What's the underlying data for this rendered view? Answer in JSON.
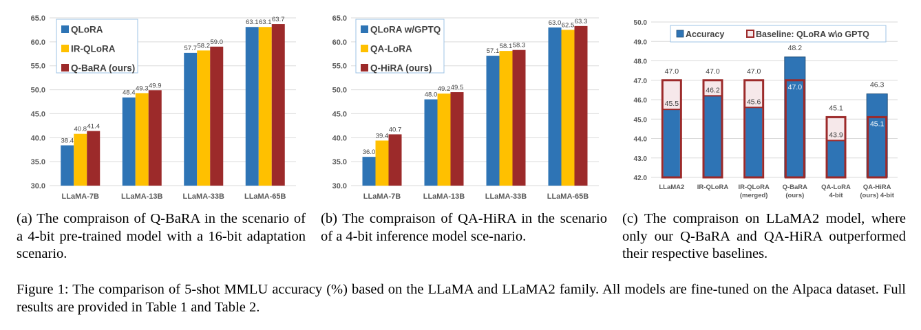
{
  "colors": {
    "blue": "#2e74b5",
    "yellow": "#ffc000",
    "red": "#9c2a2a",
    "baseline_edge": "#9c2a2a",
    "baseline_fill": "#f6e8ea",
    "grid": "#d9d9d9",
    "axis_text": "#595959"
  },
  "chart_data": [
    {
      "type": "bar",
      "categories": [
        "LLaMA-7B",
        "LLaMA-13B",
        "LLaMA-33B",
        "LLaMA-65B"
      ],
      "series": [
        {
          "name": "QLoRA",
          "values": [
            38.4,
            48.4,
            57.7,
            63.1
          ],
          "color": "blue"
        },
        {
          "name": "IR-QLoRA",
          "values": [
            40.8,
            49.3,
            58.2,
            63.1
          ],
          "color": "yellow"
        },
        {
          "name": "Q-BaRA (ours)",
          "values": [
            41.4,
            49.9,
            59.0,
            63.7
          ],
          "color": "red"
        }
      ],
      "yticks": [
        "30.0",
        "35.0",
        "40.0",
        "45.0",
        "50.0",
        "55.0",
        "60.0",
        "65.0"
      ],
      "ylim": [
        30,
        65
      ],
      "grid": true,
      "legend_position": "top-left"
    },
    {
      "type": "bar",
      "categories": [
        "LLaMA-7B",
        "LLaMA-13B",
        "LLaMA-33B",
        "LLaMA-65B"
      ],
      "series": [
        {
          "name": "QLoRA w/GPTQ",
          "values": [
            36.0,
            48.0,
            57.1,
            63.0
          ],
          "color": "blue"
        },
        {
          "name": "QA-LoRA",
          "values": [
            39.4,
            49.2,
            58.1,
            62.5
          ],
          "color": "yellow"
        },
        {
          "name": "Q-HiRA (ours)",
          "values": [
            40.7,
            49.5,
            58.3,
            63.3
          ],
          "color": "red"
        }
      ],
      "yticks": [
        "30.0",
        "35.0",
        "40.0",
        "45.0",
        "50.0",
        "55.0",
        "60.0",
        "65.0"
      ],
      "ylim": [
        30,
        65
      ],
      "grid": true,
      "legend_position": "top-left"
    },
    {
      "type": "bar",
      "categories": [
        [
          "LLaMA2"
        ],
        [
          "IR-QLoRA"
        ],
        [
          "IR-QLoRA",
          "(merged)"
        ],
        [
          "Q-BaRA",
          "(ours)"
        ],
        [
          "QA-LoRA",
          "4-bit"
        ],
        [
          "QA-HiRA",
          "(ours) 4-bit"
        ]
      ],
      "series": [
        {
          "name": "Accuracy",
          "values": [
            45.5,
            46.2,
            45.6,
            48.2,
            43.9,
            46.3
          ],
          "color": "blue"
        },
        {
          "name": "Baseline: QLoRA w\\o GPTQ",
          "values": [
            47.0,
            47.0,
            47.0,
            47.0,
            45.1,
            45.1
          ],
          "color": "baseline"
        }
      ],
      "yticks": [
        "42.0",
        "43.0",
        "44.0",
        "45.0",
        "46.0",
        "47.0",
        "48.0",
        "49.0",
        "50.0"
      ],
      "ylim": [
        42,
        50
      ],
      "grid": true,
      "legend_position": "top"
    }
  ],
  "captions": {
    "a": "(a) The compraison of Q-BaRA in the scenario of a 4-bit pre-trained model with a 16-bit adaptation scenario.",
    "b": "(b) The compraison of QA-HiRA in the scenario of a 4-bit inference model sce-nario.",
    "c": "(c) The compraison on LLaMA2 model, where only our Q-BaRA and QA-HiRA outperformed their respective baselines.",
    "figure": "Figure 1: The comparison of 5-shot MMLU accuracy (%) based on the LLaMA and LLaMA2 family. All models are fine-tuned on the Alpaca dataset. Full results are provided in Table 1 and Table 2."
  }
}
